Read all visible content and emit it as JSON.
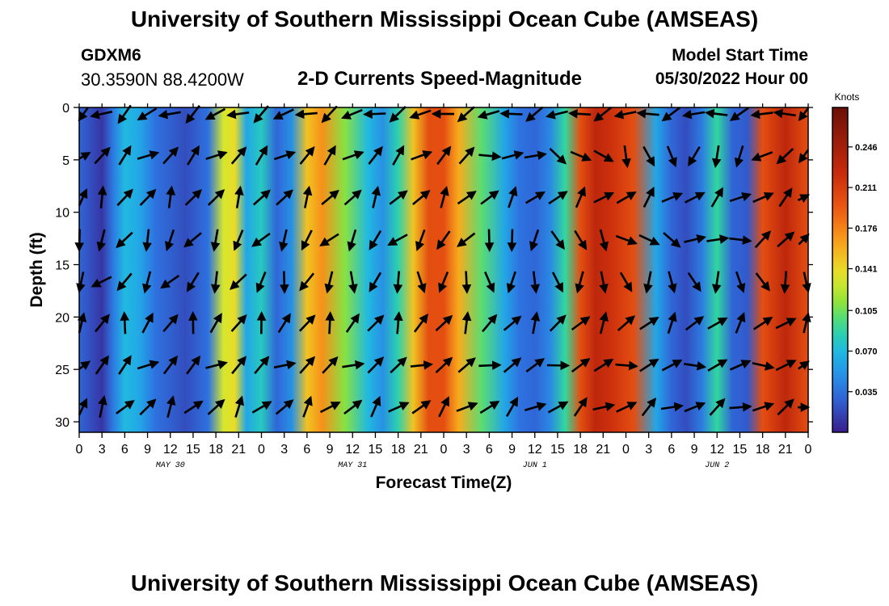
{
  "header": {
    "title": "University of Southern Mississippi Ocean Cube (AMSEAS)",
    "station": "GDXM6",
    "coords": "30.3590N  88.4200W",
    "subtitle": "2-D Currents Speed-Magnitude",
    "start_label": "Model Start Time",
    "start_value": "05/30/2022 Hour 00"
  },
  "footer": {
    "title": "University of Southern Mississippi Ocean Cube (AMSEAS)"
  },
  "chart_data": {
    "type": "heatmap",
    "title": "2-D Currents Speed-Magnitude",
    "xlabel": "Forecast Time(Z)",
    "ylabel": "Depth (ft)",
    "x_range_hours": [
      0,
      96
    ],
    "y_range_ft": [
      0,
      31
    ],
    "x_tick_labels": [
      "0",
      "3",
      "6",
      "9",
      "12",
      "15",
      "18",
      "21",
      "0",
      "3",
      "6",
      "9",
      "12",
      "15",
      "18",
      "21",
      "0",
      "3",
      "6",
      "9",
      "12",
      "15",
      "18",
      "21",
      "0",
      "3",
      "6",
      "9",
      "12",
      "15",
      "18",
      "21",
      "0"
    ],
    "date_labels": [
      {
        "hour": 12,
        "text": "MAY 30"
      },
      {
        "hour": 36,
        "text": "MAY 31"
      },
      {
        "hour": 60,
        "text": "JUN 1"
      },
      {
        "hour": 84,
        "text": "JUN 2"
      }
    ],
    "y_ticks": [
      0,
      5,
      10,
      15,
      20,
      25,
      30
    ],
    "y_tick_labels": [
      "0",
      "5",
      "10",
      "15",
      "20",
      "25",
      "30"
    ],
    "colorbar": {
      "unit": "Knots",
      "range": [
        0,
        0.28
      ],
      "tick_values": [
        0.035,
        0.07,
        0.105,
        0.141,
        0.176,
        0.211,
        0.246
      ],
      "tick_labels": [
        "0.035",
        "0.070",
        "0.105",
        "0.141",
        "0.176",
        "0.211",
        "0.246"
      ]
    },
    "speed_profile_knots": [
      {
        "hour": 0,
        "value": 0.03
      },
      {
        "hour": 3,
        "value": 0.01
      },
      {
        "hour": 4.5,
        "value": 0.04
      },
      {
        "hour": 6,
        "value": 0.07
      },
      {
        "hour": 8,
        "value": 0.06
      },
      {
        "hour": 10,
        "value": 0.035
      },
      {
        "hour": 14,
        "value": 0.02
      },
      {
        "hour": 17,
        "value": 0.035
      },
      {
        "hour": 19,
        "value": 0.13
      },
      {
        "hour": 20.5,
        "value": 0.14
      },
      {
        "hour": 22,
        "value": 0.06
      },
      {
        "hour": 24,
        "value": 0.08
      },
      {
        "hour": 26,
        "value": 0.03
      },
      {
        "hour": 28,
        "value": 0.05
      },
      {
        "hour": 30,
        "value": 0.15
      },
      {
        "hour": 32,
        "value": 0.17
      },
      {
        "hour": 35,
        "value": 0.11
      },
      {
        "hour": 38,
        "value": 0.07
      },
      {
        "hour": 40,
        "value": 0.05
      },
      {
        "hour": 42,
        "value": 0.085
      },
      {
        "hour": 44,
        "value": 0.15
      },
      {
        "hour": 46,
        "value": 0.2
      },
      {
        "hour": 48,
        "value": 0.2
      },
      {
        "hour": 50,
        "value": 0.16
      },
      {
        "hour": 53,
        "value": 0.1
      },
      {
        "hour": 56,
        "value": 0.06
      },
      {
        "hour": 58,
        "value": 0.035
      },
      {
        "hour": 60,
        "value": 0.03
      },
      {
        "hour": 62,
        "value": 0.045
      },
      {
        "hour": 64,
        "value": 0.09
      },
      {
        "hour": 66,
        "value": 0.2
      },
      {
        "hour": 68,
        "value": 0.23
      },
      {
        "hour": 70,
        "value": 0.22
      },
      {
        "hour": 73,
        "value": 0.2
      },
      {
        "hour": 76,
        "value": 0.06
      },
      {
        "hour": 78,
        "value": 0.03
      },
      {
        "hour": 80,
        "value": 0.02
      },
      {
        "hour": 82,
        "value": 0.04
      },
      {
        "hour": 84,
        "value": 0.09
      },
      {
        "hour": 86,
        "value": 0.03
      },
      {
        "hour": 88,
        "value": 0.025
      },
      {
        "hour": 90,
        "value": 0.2
      },
      {
        "hour": 93,
        "value": 0.23
      },
      {
        "hour": 96,
        "value": 0.2
      }
    ],
    "vector_hours": [
      0,
      3,
      6,
      9,
      12,
      15,
      18,
      21,
      24,
      27,
      30,
      33,
      36,
      39,
      42,
      45,
      48,
      51,
      54,
      57,
      60,
      63,
      66,
      69,
      72,
      75,
      78,
      81,
      84,
      87,
      90,
      93,
      96
    ],
    "vector_depths_ft": [
      0,
      4,
      8,
      12,
      16,
      20,
      24,
      28
    ],
    "vector_direction_deg": [
      [
        235,
        250,
        260
      ],
      [
        50,
        45,
        250
      ],
      [
        30,
        40,
        60
      ],
      [
        200,
        220,
        40
      ],
      [
        225,
        180,
        160
      ],
      [
        20,
        30,
        50
      ],
      [
        45,
        60,
        80
      ],
      [
        35,
        50,
        70
      ]
    ],
    "vector_direction_hours": [
      0,
      48,
      96
    ]
  }
}
